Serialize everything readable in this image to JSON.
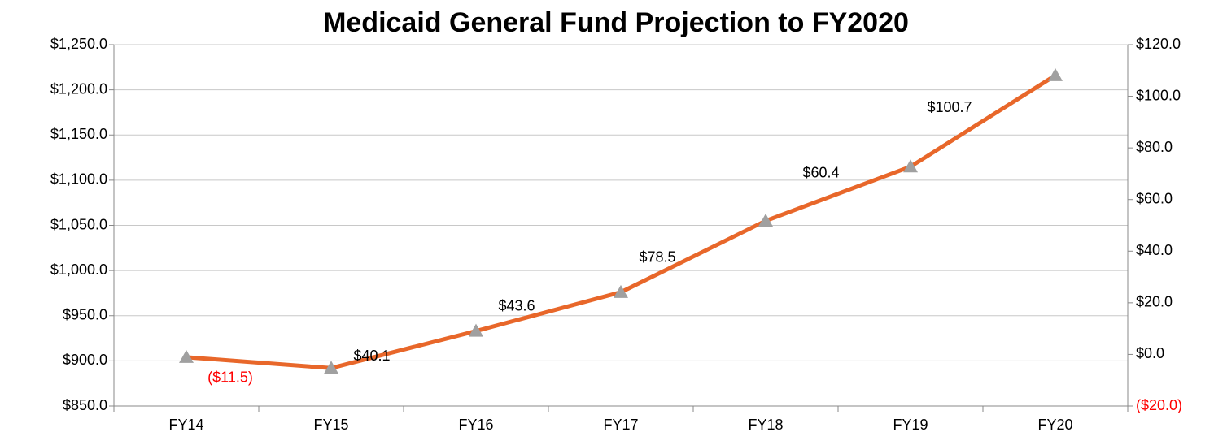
{
  "chart_data": {
    "type": "line",
    "title": "Medicaid General Fund Projection to FY2020",
    "categories": [
      "FY14",
      "FY15",
      "FY16",
      "FY17",
      "FY18",
      "FY19",
      "FY20"
    ],
    "series": [
      {
        "name": "Medicaid General Fund",
        "color": "#e8672a",
        "marker_color": "#a0a0a0",
        "values": [
          904,
          892,
          933,
          976,
          1055,
          1115,
          1216
        ]
      }
    ],
    "annotations": [
      {
        "value": -11.5,
        "label": "($11.5)"
      },
      {
        "value": 40.1,
        "label": "$40.1"
      },
      {
        "value": 43.6,
        "label": "$43.6"
      },
      {
        "value": 78.5,
        "label": "$78.5"
      },
      {
        "value": 60.4,
        "label": "$60.4"
      },
      {
        "value": 100.7,
        "label": "$100.7"
      }
    ],
    "ylim": [
      850,
      1250
    ],
    "yticks": [
      {
        "value": 850,
        "label": "$850.0"
      },
      {
        "value": 900,
        "label": "$900.0"
      },
      {
        "value": 950,
        "label": "$950.0"
      },
      {
        "value": 1000,
        "label": "$1,000.0"
      },
      {
        "value": 1050,
        "label": "$1,050.0"
      },
      {
        "value": 1100,
        "label": "$1,100.0"
      },
      {
        "value": 1150,
        "label": "$1,150.0"
      },
      {
        "value": 1200,
        "label": "$1,200.0"
      },
      {
        "value": 1250,
        "label": "$1,250.0"
      }
    ],
    "y2lim": [
      -20,
      120
    ],
    "y2ticks": [
      {
        "value": -20,
        "label": "($20.0)"
      },
      {
        "value": 0,
        "label": "$0.0"
      },
      {
        "value": 20,
        "label": "$20.0"
      },
      {
        "value": 40,
        "label": "$40.0"
      },
      {
        "value": 60,
        "label": "$60.0"
      },
      {
        "value": 80,
        "label": "$80.0"
      },
      {
        "value": 100,
        "label": "$100.0"
      },
      {
        "value": 120,
        "label": "$120.0"
      }
    ],
    "negative_color": "#ff0000",
    "grid": true
  }
}
